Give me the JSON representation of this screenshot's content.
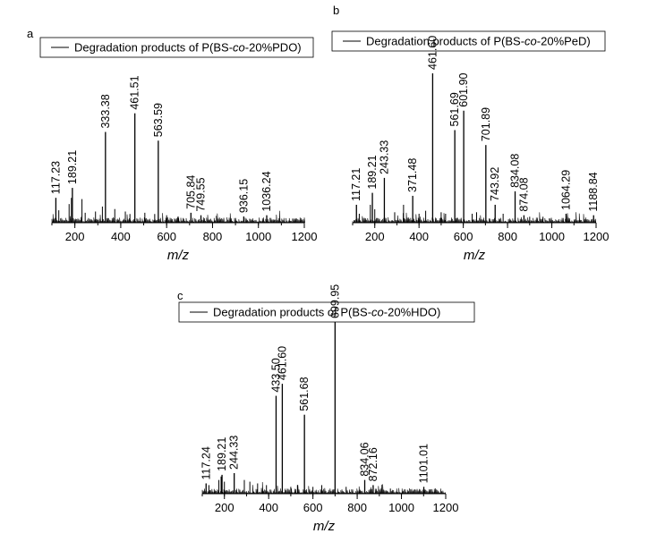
{
  "chart_data": [
    {
      "type": "line",
      "panel": "a",
      "legend": {
        "prefix": "Degradation products of P(BS-",
        "italic": "co",
        "suffix": "-20%PDO)"
      },
      "xlabel": "m/z",
      "xlim": [
        100,
        1200
      ],
      "x_ticks": [
        "200",
        "400",
        "600",
        "800",
        "1000",
        "1200"
      ],
      "x_tick_values": [
        200,
        400,
        600,
        800,
        1000,
        1200
      ],
      "peaks": [
        {
          "x": 117.23,
          "label": "117.23",
          "intensity": 0.2
        },
        {
          "x": 189.21,
          "label": "189.21",
          "intensity": 0.28
        },
        {
          "x": 333.38,
          "label": "333.38",
          "intensity": 0.73
        },
        {
          "x": 461.51,
          "label": "461.51",
          "intensity": 0.88
        },
        {
          "x": 563.59,
          "label": "563.59",
          "intensity": 0.66
        },
        {
          "x": 705.84,
          "label": "705.84",
          "intensity": 0.08
        },
        {
          "x": 749.55,
          "label": "749.55",
          "intensity": 0.06
        },
        {
          "x": 936.15,
          "label": "936.15",
          "intensity": 0.05
        },
        {
          "x": 1036.24,
          "label": "1036.24",
          "intensity": 0.06
        }
      ],
      "minor_peaks": [
        [
          130,
          0.1
        ],
        [
          175,
          0.15
        ],
        [
          185,
          0.2
        ],
        [
          231,
          0.19
        ],
        [
          245,
          0.08
        ],
        [
          290,
          0.09
        ],
        [
          320,
          0.13
        ],
        [
          374,
          0.11
        ],
        [
          420,
          0.09
        ],
        [
          440,
          0.07
        ],
        [
          505,
          0.08
        ],
        [
          548,
          0.07
        ],
        [
          600,
          0.06
        ],
        [
          650,
          0.05
        ]
      ]
    },
    {
      "type": "line",
      "panel": "b",
      "legend": {
        "prefix": "Degradation products of P(BS-",
        "italic": "co",
        "suffix": "-20%PeD)"
      },
      "xlabel": "m/z",
      "xlim": [
        100,
        1200
      ],
      "x_ticks": [
        "200",
        "400",
        "600",
        "800",
        "1000",
        "1200"
      ],
      "x_tick_values": [
        200,
        400,
        600,
        800,
        1000,
        1200
      ],
      "peaks": [
        {
          "x": 117.21,
          "label": "117.21",
          "intensity": 0.12
        },
        {
          "x": 189.21,
          "label": "189.21",
          "intensity": 0.2
        },
        {
          "x": 243.33,
          "label": "243.33",
          "intensity": 0.3
        },
        {
          "x": 371.48,
          "label": "371.48",
          "intensity": 0.18
        },
        {
          "x": 461.6,
          "label": "461.60",
          "intensity": 1.0
        },
        {
          "x": 561.69,
          "label": "561.69",
          "intensity": 0.62
        },
        {
          "x": 601.9,
          "label": "601.90",
          "intensity": 0.75
        },
        {
          "x": 701.89,
          "label": "701.89",
          "intensity": 0.52
        },
        {
          "x": 743.92,
          "label": "743.92",
          "intensity": 0.12
        },
        {
          "x": 834.08,
          "label": "834.08",
          "intensity": 0.21
        },
        {
          "x": 874.08,
          "label": "874.08",
          "intensity": 0.05
        },
        {
          "x": 1064.29,
          "label": "1064.29",
          "intensity": 0.06
        },
        {
          "x": 1188.84,
          "label": "1188.84",
          "intensity": 0.05
        }
      ],
      "minor_peaks": [
        [
          130,
          0.06
        ],
        [
          180,
          0.12
        ],
        [
          200,
          0.09
        ],
        [
          290,
          0.07
        ],
        [
          330,
          0.12
        ],
        [
          400,
          0.06
        ],
        [
          430,
          0.08
        ],
        [
          500,
          0.07
        ],
        [
          520,
          0.06
        ],
        [
          640,
          0.06
        ],
        [
          660,
          0.07
        ],
        [
          780,
          0.06
        ],
        [
          900,
          0.04
        ],
        [
          960,
          0.04
        ]
      ]
    },
    {
      "type": "line",
      "panel": "c",
      "legend": {
        "prefix": "Degradation products of P(BS-",
        "italic": "co",
        "suffix": "-20%HDO)"
      },
      "xlabel": "m/z",
      "xlim": [
        100,
        1200
      ],
      "x_ticks": [
        "200",
        "400",
        "600",
        "800",
        "1000",
        "1200"
      ],
      "x_tick_values": [
        200,
        400,
        600,
        800,
        1000,
        1200
      ],
      "peaks": [
        {
          "x": 117.24,
          "label": "117.24",
          "intensity": 0.06
        },
        {
          "x": 189.21,
          "label": "189.21",
          "intensity": 0.11
        },
        {
          "x": 244.33,
          "label": "244.33",
          "intensity": 0.12
        },
        {
          "x": 433.5,
          "label": "433.50",
          "intensity": 0.57
        },
        {
          "x": 461.6,
          "label": "461.60",
          "intensity": 0.64
        },
        {
          "x": 561.68,
          "label": "561.68",
          "intensity": 0.46
        },
        {
          "x": 699.95,
          "label": "699.95",
          "intensity": 1.0
        },
        {
          "x": 834.06,
          "label": "834.06",
          "intensity": 0.08
        },
        {
          "x": 872.16,
          "label": "872.16",
          "intensity": 0.05
        },
        {
          "x": 1101.01,
          "label": "1101.01",
          "intensity": 0.04
        }
      ],
      "minor_peaks": [
        [
          130,
          0.05
        ],
        [
          175,
          0.08
        ],
        [
          185,
          0.1
        ],
        [
          200,
          0.07
        ],
        [
          290,
          0.08
        ],
        [
          315,
          0.07
        ],
        [
          350,
          0.06
        ],
        [
          390,
          0.05
        ],
        [
          500,
          0.04
        ],
        [
          530,
          0.05
        ],
        [
          600,
          0.04
        ],
        [
          640,
          0.05
        ],
        [
          750,
          0.04
        ],
        [
          950,
          0.03
        ]
      ]
    }
  ]
}
